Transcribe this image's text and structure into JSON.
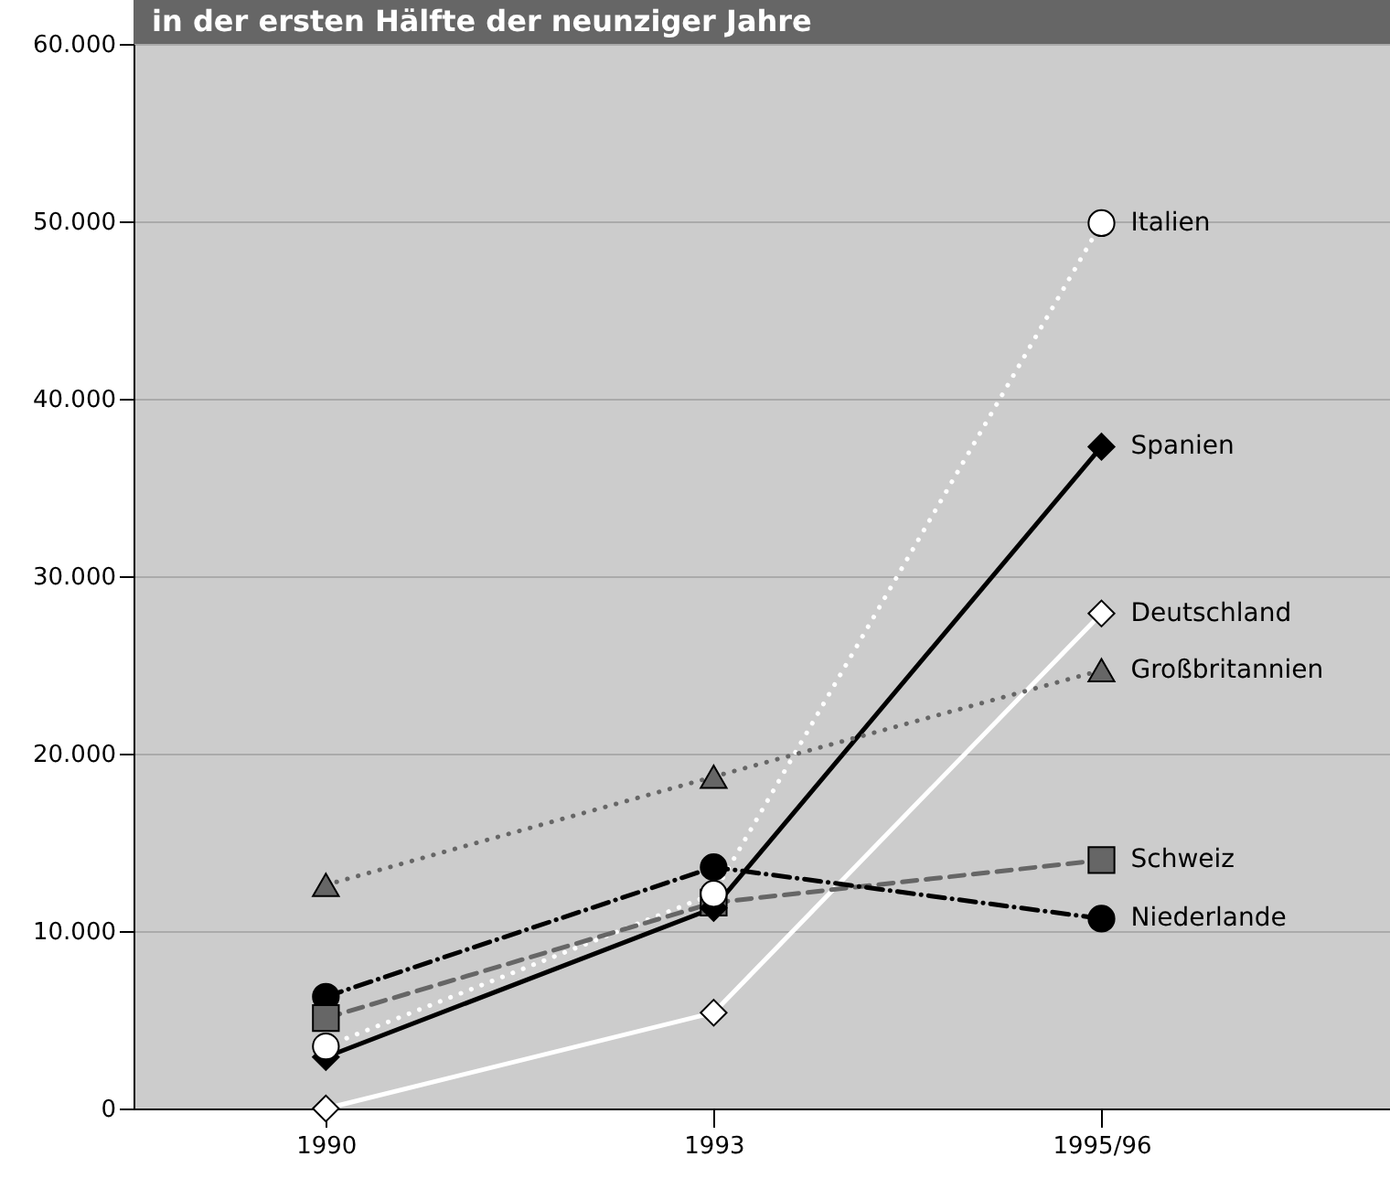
{
  "chart_data": {
    "type": "line",
    "title": "in der ersten Hälfte der neunziger Jahre",
    "categories": [
      "1990",
      "1993",
      "1995/96"
    ],
    "series": [
      {
        "name": "Italien",
        "color": "#ffffff",
        "marker": "circle",
        "line_style": "dotted",
        "values": [
          3500,
          12100,
          49900
        ]
      },
      {
        "name": "Spanien",
        "color": "#000000",
        "marker": "diamond",
        "line_style": "solid",
        "values": [
          2900,
          11300,
          37300
        ]
      },
      {
        "name": "Deutschland",
        "color": "#ffffff",
        "marker": "diamond",
        "line_style": "solid",
        "values": [
          0,
          5400,
          27900
        ]
      },
      {
        "name": "Großbritannien",
        "color": "#666666",
        "marker": "triangle",
        "line_style": "dotted",
        "values": [
          12600,
          18700,
          24700
        ]
      },
      {
        "name": "Schweiz",
        "color": "#666666",
        "marker": "square",
        "line_style": "dashed",
        "values": [
          5100,
          11600,
          14000
        ]
      },
      {
        "name": "Niederlande",
        "color": "#000000",
        "marker": "circle",
        "line_style": "dashdot",
        "values": [
          6300,
          13600,
          10700
        ]
      }
    ],
    "ylim": [
      0,
      60000
    ],
    "yticks": [
      {
        "value": 0,
        "label": "0"
      },
      {
        "value": 10000,
        "label": "10.000"
      },
      {
        "value": 20000,
        "label": "20.000"
      },
      {
        "value": 30000,
        "label": "30.000"
      },
      {
        "value": 40000,
        "label": "40.000"
      },
      {
        "value": 50000,
        "label": "50.000"
      },
      {
        "value": 60000,
        "label": "60.000"
      }
    ],
    "grid": "y",
    "legend": false
  }
}
